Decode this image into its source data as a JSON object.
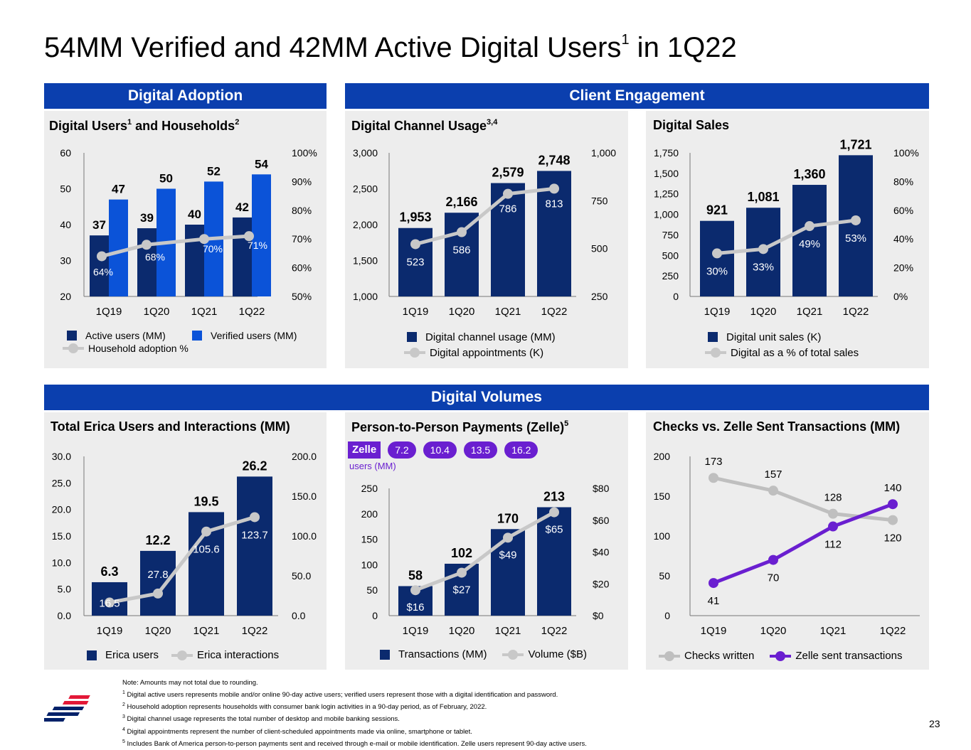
{
  "title": {
    "text": "54MM Verified and 42MM Active Digital Users",
    "sup": "1",
    "suffix": " in 1Q22"
  },
  "sections": {
    "digital_adoption": "Digital Adoption",
    "client_engagement": "Client Engagement",
    "digital_volumes": "Digital Volumes"
  },
  "colors": {
    "dark_navy": "#0b2a6e",
    "bright_blue": "#0b53d8",
    "header_blue": "#0b3fae",
    "line_gray": "#c8c8c8",
    "zelle_purple": "#6a1fd0",
    "checks_gray": "#bfbfbf",
    "panel_bg": "#ededed"
  },
  "panels": {
    "users": {
      "title": "Digital Users",
      "sup1": "1",
      "title_mid": " and Households",
      "sup2": "2",
      "legend": {
        "active": "Active users (MM)",
        "verified": "Verified users (MM)",
        "household": "Household adoption %"
      }
    },
    "channel": {
      "title": "Digital Channel Usage",
      "sup": "3,4",
      "legend": {
        "usage": "Digital channel usage (MM)",
        "appointments": "Digital appointments (K)"
      }
    },
    "sales": {
      "title": "Digital Sales",
      "legend": {
        "units": "Digital unit sales (K)",
        "pct": "Digital as a % of total sales"
      }
    },
    "erica": {
      "title": "Total Erica Users and Interactions (MM)",
      "legend": {
        "users": "Erica users",
        "interactions": "Erica interactions"
      }
    },
    "zelle": {
      "title": "Person-to-Person Payments (Zelle)",
      "sup": "5",
      "logo": "Zelle",
      "users_label": "users (MM)",
      "users": [
        "7.2",
        "10.4",
        "13.5",
        "16.2"
      ],
      "legend": {
        "transactions": "Transactions (MM)",
        "volume": "Volume ($B)"
      }
    },
    "checks": {
      "title": "Checks vs. Zelle Sent Transactions (MM)",
      "legend": {
        "checks": "Checks written",
        "zelle": "Zelle sent transactions"
      }
    }
  },
  "chart_data": [
    {
      "id": "users",
      "type": "bar",
      "categories": [
        "1Q19",
        "1Q20",
        "1Q21",
        "1Q22"
      ],
      "series": [
        {
          "name": "Active users (MM)",
          "values": [
            37,
            39,
            40,
            42
          ]
        },
        {
          "name": "Verified users (MM)",
          "values": [
            47,
            50,
            52,
            54
          ]
        },
        {
          "name": "Household adoption %",
          "type": "line",
          "axis": "right",
          "values": [
            64,
            68,
            70,
            71
          ],
          "labels": [
            "64%",
            "68%",
            "70%",
            "71%"
          ]
        }
      ],
      "ylim": [
        20,
        60
      ],
      "yticks": [
        "20",
        "30",
        "40",
        "50",
        "60"
      ],
      "y2lim": [
        50,
        100
      ],
      "y2ticks": [
        "50%",
        "60%",
        "70%",
        "80%",
        "90%",
        "100%"
      ]
    },
    {
      "id": "channel",
      "type": "bar",
      "categories": [
        "1Q19",
        "1Q20",
        "1Q21",
        "1Q22"
      ],
      "series": [
        {
          "name": "Digital channel usage (MM)",
          "values": [
            1953,
            2166,
            2579,
            2748
          ],
          "labels": [
            "1,953",
            "2,166",
            "2,579",
            "2,748"
          ]
        },
        {
          "name": "Digital appointments (K)",
          "type": "line",
          "axis": "right",
          "values": [
            523,
            586,
            786,
            813
          ],
          "labels": [
            "523",
            "586",
            "786",
            "813"
          ]
        }
      ],
      "ylim": [
        1000,
        3000
      ],
      "yticks": [
        "1,000",
        "1,500",
        "2,000",
        "2,500",
        "3,000"
      ],
      "y2lim": [
        250,
        1000
      ],
      "y2ticks": [
        "250",
        "500",
        "750",
        "1,000"
      ]
    },
    {
      "id": "sales",
      "type": "bar",
      "categories": [
        "1Q19",
        "1Q20",
        "1Q21",
        "1Q22"
      ],
      "series": [
        {
          "name": "Digital unit sales (K)",
          "values": [
            921,
            1081,
            1360,
            1721
          ],
          "labels": [
            "921",
            "1,081",
            "1,360",
            "1,721"
          ]
        },
        {
          "name": "Digital as a % of total sales",
          "type": "line",
          "axis": "right",
          "values": [
            30,
            33,
            49,
            53
          ],
          "labels": [
            "30%",
            "33%",
            "49%",
            "53%"
          ]
        }
      ],
      "ylim": [
        0,
        1750
      ],
      "yticks": [
        "0",
        "250",
        "500",
        "750",
        "1,000",
        "1,250",
        "1,500",
        "1,750"
      ],
      "y2lim": [
        0,
        100
      ],
      "y2ticks": [
        "0%",
        "20%",
        "40%",
        "60%",
        "80%",
        "100%"
      ]
    },
    {
      "id": "erica",
      "type": "bar",
      "categories": [
        "1Q19",
        "1Q20",
        "1Q21",
        "1Q22"
      ],
      "series": [
        {
          "name": "Erica users",
          "values": [
            6.3,
            12.2,
            19.5,
            26.2
          ],
          "labels": [
            "6.3",
            "12.2",
            "19.5",
            "26.2"
          ]
        },
        {
          "name": "Erica interactions",
          "type": "line",
          "axis": "right",
          "values": [
            16.5,
            27.8,
            105.6,
            123.7
          ],
          "labels": [
            "16.5",
            "27.8",
            "105.6",
            "123.7"
          ]
        }
      ],
      "ylim": [
        0,
        30
      ],
      "yticks": [
        "0.0",
        "5.0",
        "10.0",
        "15.0",
        "20.0",
        "25.0",
        "30.0"
      ],
      "y2lim": [
        0,
        200
      ],
      "y2ticks": [
        "0.0",
        "50.0",
        "100.0",
        "150.0",
        "200.0"
      ]
    },
    {
      "id": "zelle",
      "type": "bar",
      "categories": [
        "1Q19",
        "1Q20",
        "1Q21",
        "1Q22"
      ],
      "series": [
        {
          "name": "Transactions (MM)",
          "values": [
            58,
            102,
            170,
            213
          ],
          "labels": [
            "58",
            "102",
            "170",
            "213"
          ]
        },
        {
          "name": "Volume ($B)",
          "type": "line",
          "axis": "right",
          "values": [
            16,
            27,
            49,
            65
          ],
          "labels": [
            "$16",
            "$27",
            "$49",
            "$65"
          ]
        }
      ],
      "ylim": [
        0,
        250
      ],
      "yticks": [
        "0",
        "50",
        "100",
        "150",
        "200",
        "250"
      ],
      "y2lim": [
        0,
        80
      ],
      "y2ticks": [
        "$0",
        "$20",
        "$40",
        "$60",
        "$80"
      ]
    },
    {
      "id": "checks",
      "type": "line",
      "categories": [
        "1Q19",
        "1Q20",
        "1Q21",
        "1Q22"
      ],
      "series": [
        {
          "name": "Checks written",
          "values": [
            173,
            157,
            128,
            120
          ],
          "labels": [
            "173",
            "157",
            "128",
            "120"
          ]
        },
        {
          "name": "Zelle sent transactions",
          "values": [
            41,
            70,
            112,
            140
          ],
          "labels": [
            "41",
            "70",
            "112",
            "140"
          ]
        }
      ],
      "ylim": [
        0,
        200
      ],
      "yticks": [
        "0",
        "50",
        "100",
        "150",
        "200"
      ]
    }
  ],
  "footnotes": [
    {
      "sup": "",
      "text": "Note: Amounts may not total due to rounding."
    },
    {
      "sup": "1",
      "text": " Digital active users represents mobile and/or online 90-day active users; verified users represent those with a digital identification and password."
    },
    {
      "sup": "2",
      "text": " Household adoption represents households with consumer bank login activities in a 90-day period, as of February, 2022."
    },
    {
      "sup": "3",
      "text": " Digital channel usage represents the total number of desktop and mobile banking sessions."
    },
    {
      "sup": "4",
      "text": " Digital appointments represent the number of client-scheduled appointments made via online, smartphone or tablet."
    },
    {
      "sup": "5",
      "text": " Includes Bank of America person-to-person payments sent and received through e-mail or mobile identification. Zelle users represent 90-day active users."
    }
  ],
  "page_number": "23"
}
